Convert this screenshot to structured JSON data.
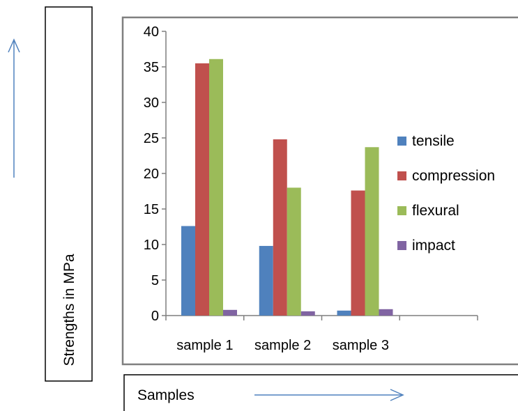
{
  "chart_data": {
    "type": "bar",
    "categories": [
      "sample 1",
      "sample 2",
      "sample 3"
    ],
    "series": [
      {
        "name": "tensile",
        "values": [
          12.6,
          9.8,
          0.7
        ]
      },
      {
        "name": "compression",
        "values": [
          35.5,
          24.8,
          17.6
        ]
      },
      {
        "name": "flexural",
        "values": [
          36.1,
          18.0,
          23.7
        ]
      },
      {
        "name": "impact",
        "values": [
          0.8,
          0.6,
          0.9
        ]
      }
    ],
    "title": "",
    "xlabel": "Samples",
    "ylabel": "Strengths in MPa",
    "ylim": [
      0,
      40
    ],
    "yticks": [
      0,
      5,
      10,
      15,
      20,
      25,
      30,
      35,
      40
    ],
    "grid": false,
    "legend_position": "right",
    "colors": {
      "tensile": "#4F81BD",
      "compression": "#C0504D",
      "flexural": "#9BBB59",
      "impact": "#8064A2",
      "arrow": "#4F81BD"
    }
  }
}
